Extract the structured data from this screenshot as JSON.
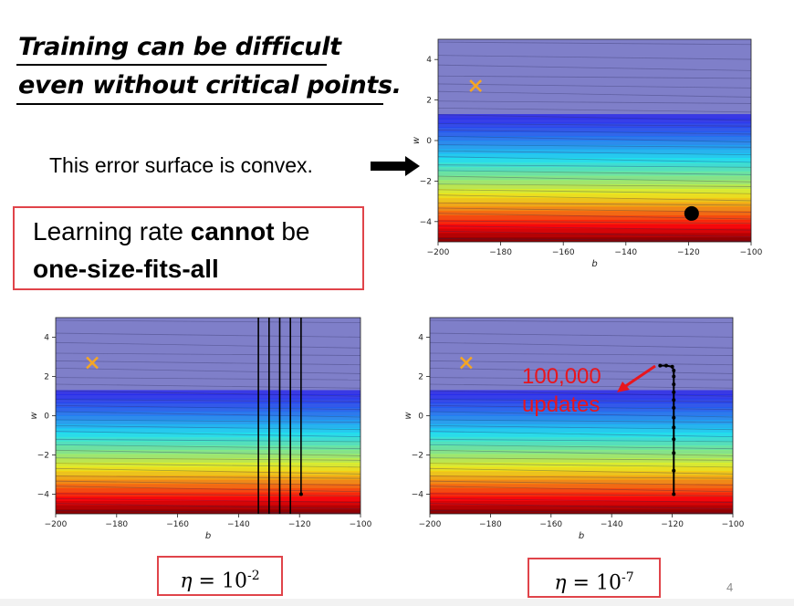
{
  "title": {
    "line1": "Training can be difficult",
    "line2": "even without critical points."
  },
  "caption": "This error surface is convex.",
  "learning_rate_box": {
    "line1_prefix": "Learning rate ",
    "line1_bold": "cannot",
    "line1_suffix": " be",
    "line2_bold": "one-size-fits-all"
  },
  "annotation": {
    "line1": "100,000",
    "line2": "updates"
  },
  "eta_left": {
    "symbol": "η",
    "equals": " = 10",
    "exponent": "-2"
  },
  "eta_right": {
    "symbol": "η",
    "equals": " = 10",
    "exponent": "-7"
  },
  "page_number": "4",
  "colors": {
    "accent_red": "#e0444a",
    "annotation_red": "#e8161d",
    "target_marker": "#f5a623"
  },
  "chart_data": [
    {
      "type": "contour",
      "panel": "top",
      "xlabel": "b",
      "ylabel": "w",
      "xlim": [
        -200,
        -100
      ],
      "ylim": [
        -5,
        5
      ],
      "x_ticks": [
        -200,
        -180,
        -160,
        -140,
        -120,
        -100
      ],
      "y_ticks": [
        4,
        2,
        0,
        -2,
        -4
      ],
      "target": {
        "b": -188,
        "w": 2.7
      },
      "start_point": {
        "b": -119,
        "w": -3.6
      },
      "path": []
    },
    {
      "type": "contour",
      "panel": "bottom-left",
      "xlabel": "b",
      "ylabel": "w",
      "xlim": [
        -200,
        -100
      ],
      "ylim": [
        -5,
        5
      ],
      "x_ticks": [
        -200,
        -180,
        -160,
        -140,
        -120,
        -100
      ],
      "y_ticks": [
        4,
        2,
        0,
        -2,
        -4
      ],
      "target": {
        "b": -188,
        "w": 2.7
      },
      "start_point": {
        "b": -119.5,
        "w": -4
      },
      "oscillation_b": [
        -119.5,
        -123,
        -126.5,
        -130,
        -133.5
      ]
    },
    {
      "type": "contour",
      "panel": "bottom-right",
      "xlabel": "b",
      "ylabel": "w",
      "xlim": [
        -200,
        -100
      ],
      "ylim": [
        -5,
        5
      ],
      "x_ticks": [
        -200,
        -180,
        -160,
        -140,
        -120,
        -100
      ],
      "y_ticks": [
        4,
        2,
        0,
        -2,
        -4
      ],
      "target": {
        "b": -188,
        "w": 2.7
      },
      "path_points": [
        {
          "b": -119.5,
          "w": -4
        },
        {
          "b": -119.5,
          "w": -2.8
        },
        {
          "b": -119.5,
          "w": -1.9
        },
        {
          "b": -119.5,
          "w": -1.2
        },
        {
          "b": -119.5,
          "w": -0.6
        },
        {
          "b": -119.5,
          "w": -0.1
        },
        {
          "b": -119.5,
          "w": 0.4
        },
        {
          "b": -119.5,
          "w": 0.8
        },
        {
          "b": -119.5,
          "w": 1.2
        },
        {
          "b": -119.5,
          "w": 1.6
        },
        {
          "b": -119.5,
          "w": 2.0
        },
        {
          "b": -119.5,
          "w": 2.3
        },
        {
          "b": -120,
          "w": 2.5
        },
        {
          "b": -122,
          "w": 2.55
        },
        {
          "b": -124,
          "w": 2.55
        }
      ]
    }
  ]
}
